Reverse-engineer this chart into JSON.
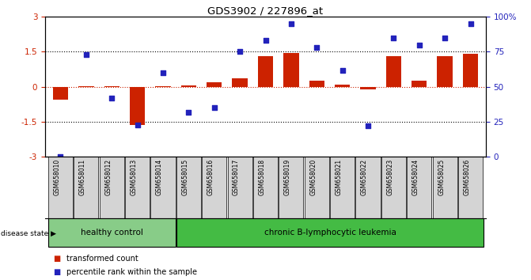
{
  "title": "GDS3902 / 227896_at",
  "samples": [
    "GSM658010",
    "GSM658011",
    "GSM658012",
    "GSM658013",
    "GSM658014",
    "GSM658015",
    "GSM658016",
    "GSM658017",
    "GSM658018",
    "GSM658019",
    "GSM658020",
    "GSM658021",
    "GSM658022",
    "GSM658023",
    "GSM658024",
    "GSM658025",
    "GSM658026"
  ],
  "transformed_count": [
    -0.55,
    0.02,
    0.02,
    -1.65,
    0.02,
    0.05,
    0.21,
    0.35,
    1.3,
    1.45,
    0.25,
    0.1,
    -0.12,
    1.3,
    0.27,
    1.3,
    1.4
  ],
  "percentile_rank": [
    0,
    73,
    42,
    23,
    60,
    32,
    35,
    75,
    83,
    95,
    78,
    62,
    22,
    85,
    80,
    85,
    95
  ],
  "healthy_count": 5,
  "leukemia_count": 12,
  "bar_color": "#CC2200",
  "dot_color": "#2222BB",
  "ylim_left": [
    -3,
    3
  ],
  "ylim_right": [
    0,
    100
  ],
  "yticks_left": [
    -3,
    -1.5,
    0,
    1.5,
    3
  ],
  "ytick_labels_left": [
    "-3",
    "-1.5",
    "0",
    "1.5",
    "3"
  ],
  "yticks_right": [
    0,
    25,
    50,
    75,
    100
  ],
  "ytick_labels_right": [
    "0",
    "25",
    "50",
    "75",
    "100%"
  ],
  "healthy_color": "#88CC88",
  "leukemia_color": "#44BB44",
  "label_bar": "transformed count",
  "label_dot": "percentile rank within the sample",
  "disease_state_label": "disease state",
  "healthy_label": "healthy control",
  "leukemia_label": "chronic B-lymphocytic leukemia",
  "background_color": "#ffffff"
}
